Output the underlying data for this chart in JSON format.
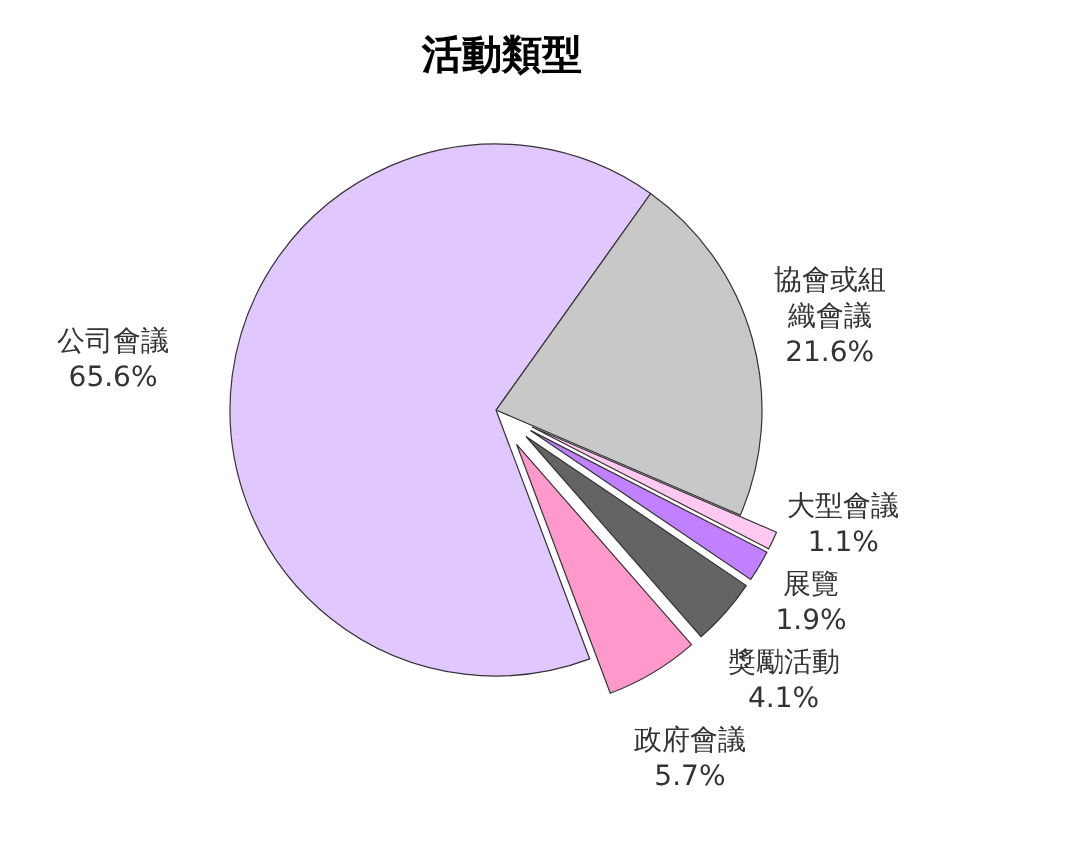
{
  "chart_data": {
    "type": "pie",
    "title": "活動類型",
    "categories": [
      "協會或組織會議",
      "大型會議",
      "展覽",
      "獎勵活動",
      "政府會議",
      "公司會議"
    ],
    "values": [
      21.6,
      1.1,
      1.9,
      4.1,
      5.7,
      65.6
    ],
    "value_labels": [
      "21.6%",
      "1.1%",
      "1.9%",
      "4.1%",
      "5.7%",
      "65.6%"
    ],
    "colors": [
      "#c8c8c8",
      "#ffc8f0",
      "#c080ff",
      "#646464",
      "#ff99cc",
      "#e0c8ff"
    ]
  }
}
